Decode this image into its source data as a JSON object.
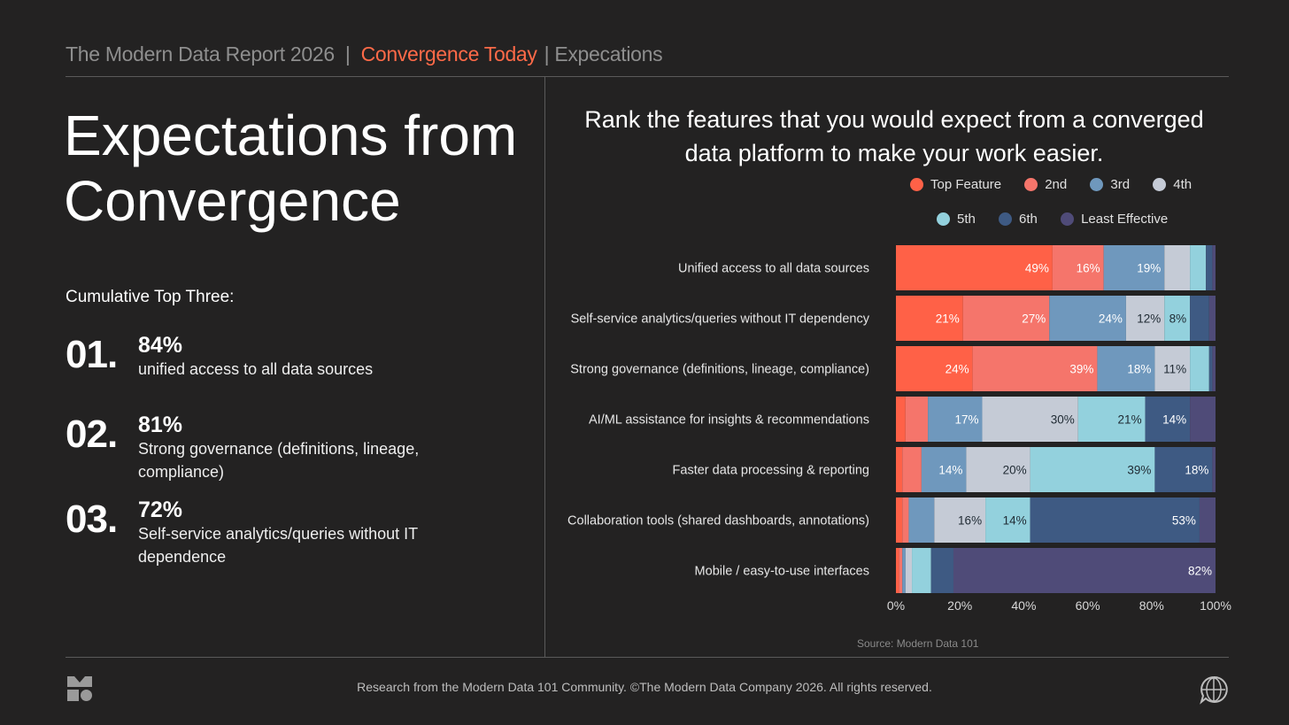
{
  "header": {
    "report": "The Modern Data Report  2026",
    "separator": "|",
    "active": "Convergence Today",
    "section": "Expecations"
  },
  "left": {
    "title": "Expectations from Convergence",
    "cumulative_label": "Cumulative Top Three:",
    "ranks": [
      {
        "num": "01.",
        "pct": "84%",
        "desc": "unified access to all data sources"
      },
      {
        "num": "02.",
        "pct": "81%",
        "desc": "Strong governance (definitions, lineage, compliance)"
      },
      {
        "num": "03.",
        "pct": "72%",
        "desc": "Self-service analytics/queries without IT dependence"
      }
    ]
  },
  "question": "Rank the features that you would expect from a converged data platform to make your work easier.",
  "chart_data": {
    "type": "bar",
    "orientation": "horizontal",
    "stacked": true,
    "categories": [
      "Unified access to all data sources",
      "Self-service analytics/queries without IT dependency",
      "Strong governance (definitions, lineage, compliance)",
      "AI/ML assistance for insights & recommendations",
      "Faster data processing & reporting",
      "Collaboration tools (shared dashboards, annotations)",
      "Mobile / easy-to-use interfaces"
    ],
    "series": [
      {
        "name": "Top Feature",
        "color": "#ff6147",
        "values": [
          49,
          21,
          24,
          3,
          2,
          2,
          1
        ]
      },
      {
        "name": "2nd",
        "color": "#f5756b",
        "values": [
          16,
          27,
          39,
          7,
          6,
          2,
          1
        ]
      },
      {
        "name": "3rd",
        "color": "#6f98bd",
        "values": [
          19,
          24,
          18,
          17,
          14,
          8,
          1
        ]
      },
      {
        "name": "4th",
        "color": "#c5cbd6",
        "values": [
          8,
          12,
          11,
          30,
          20,
          16,
          2
        ]
      },
      {
        "name": "5th",
        "color": "#93d1dd",
        "values": [
          5,
          8,
          6,
          21,
          39,
          14,
          6
        ]
      },
      {
        "name": "6th",
        "color": "#3e5a83",
        "values": [
          2,
          6,
          1,
          14,
          18,
          53,
          7
        ]
      },
      {
        "name": "Least Effective",
        "color": "#4f4b78",
        "values": [
          1,
          2,
          1,
          8,
          1,
          5,
          82
        ]
      }
    ],
    "data_labels": [
      [
        "49%",
        "16%",
        "19%",
        "",
        "",
        "",
        ""
      ],
      [
        "21%",
        "27%",
        "24%",
        "12%",
        "8%",
        "",
        ""
      ],
      [
        "24%",
        "39%",
        "18%",
        "11%",
        "",
        "",
        ""
      ],
      [
        "",
        "",
        "17%",
        "30%",
        "21%",
        "14%",
        ""
      ],
      [
        "",
        "",
        "14%",
        "20%",
        "39%",
        "18%",
        ""
      ],
      [
        "",
        "",
        "",
        "16%",
        "14%",
        "53%",
        ""
      ],
      [
        "",
        "",
        "",
        "",
        "",
        "",
        "82%"
      ]
    ],
    "x_ticks": [
      "0%",
      "20%",
      "40%",
      "60%",
      "80%",
      "100%"
    ],
    "xlim": [
      0,
      100
    ],
    "legend_position": "top"
  },
  "source": "Source: Modern Data 101",
  "footer": "Research from the Modern Data 101 Community. ©The Modern Data Company 2026. All rights reserved."
}
